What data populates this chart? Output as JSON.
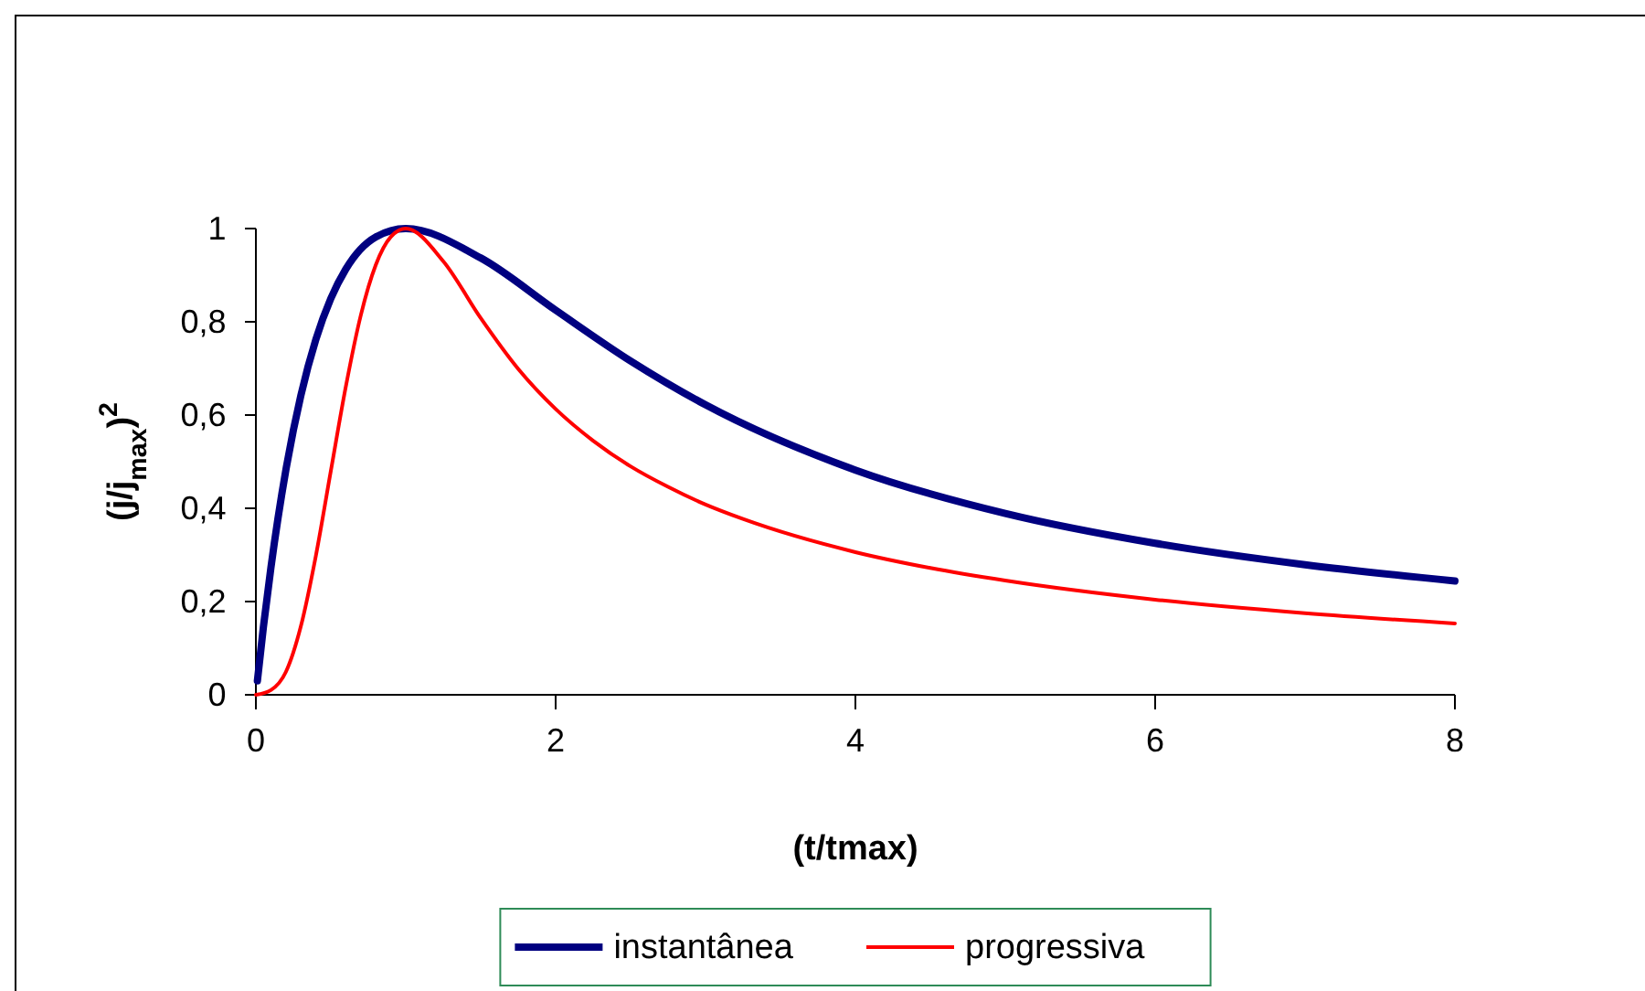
{
  "chart_data": {
    "type": "line",
    "xlabel": "(t/tmax)",
    "ylabel": "(j/j$_{max}$)$^{2}$",
    "xlim": [
      0,
      8
    ],
    "xticks": [
      0,
      2,
      4,
      6,
      8
    ],
    "ylim": [
      0,
      1
    ],
    "yticks": [
      0,
      {
        "value": 0.2,
        "label": "0,2"
      },
      {
        "value": 0.4,
        "label": "0,4"
      },
      {
        "value": 0.6,
        "label": "0,6"
      },
      {
        "value": 0.8,
        "label": "0,8"
      },
      1
    ],
    "legend": "bottom",
    "grid": false,
    "marker": "none",
    "series": [
      {
        "name": "instantânea",
        "color": "#000080",
        "x": [
          0.01,
          0.05,
          0.1,
          0.2,
          0.3,
          0.4,
          0.5,
          0.6,
          0.8,
          1,
          1.5,
          2,
          2.5,
          3,
          4,
          5,
          6,
          7,
          8
        ],
        "values": [
          0.03,
          0.145,
          0.272,
          0.482,
          0.642,
          0.762,
          0.85,
          0.913,
          0.982,
          1,
          0.937,
          0.825,
          0.716,
          0.622,
          0.482,
          0.389,
          0.325,
          0.279,
          0.244
        ]
      },
      {
        "name": "progressiva",
        "color": "#ff0000",
        "x": [
          0,
          0.1,
          0.2,
          0.3,
          0.4,
          0.5,
          0.6,
          0.7,
          0.8,
          0.9,
          1,
          1.25,
          1.5,
          1.75,
          2,
          2.25,
          2.5,
          2.75,
          3,
          3.25,
          4,
          4.5,
          5,
          6,
          7,
          8
        ],
        "values": [
          0,
          0.01,
          0.049,
          0.147,
          0.298,
          0.48,
          0.661,
          0.814,
          0.922,
          0.982,
          1,
          0.93,
          0.808,
          0.699,
          0.613,
          0.545,
          0.49,
          0.446,
          0.408,
          0.377,
          0.306,
          0.272,
          0.245,
          0.204,
          0.175,
          0.153
        ]
      }
    ]
  }
}
